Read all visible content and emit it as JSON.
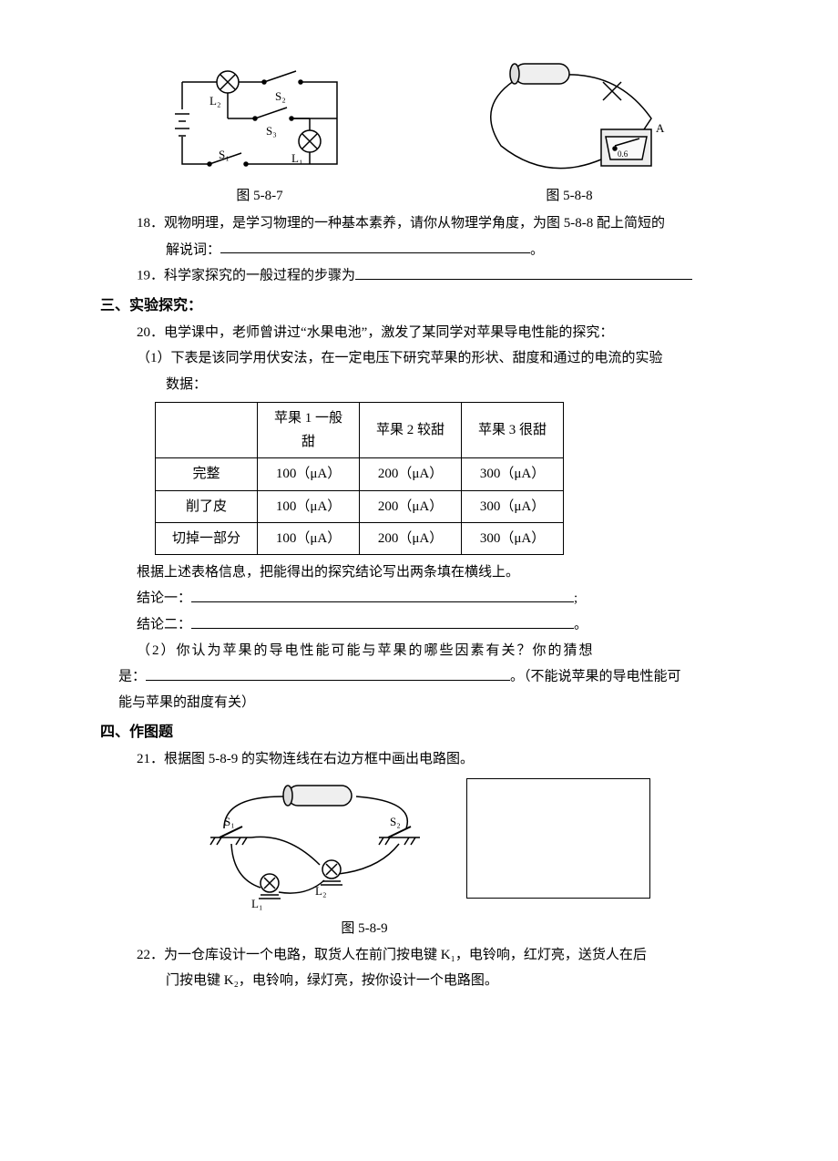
{
  "figures": {
    "fig_5_8_7_caption": "图 5-8-7",
    "fig_5_8_8_caption": "图 5-8-8",
    "fig_5_8_9_caption": "图 5-8-9",
    "circuit_5_8_7": {
      "labels": {
        "S1": "S₁",
        "S2": "S₂",
        "S3": "S₃",
        "L1": "L₁",
        "L2": "L₂"
      },
      "stroke": "#000000",
      "bg": "#ffffff"
    },
    "generator_5_8_8": {
      "label_A": "A",
      "scale_text": "0.6",
      "stroke": "#000000"
    },
    "circuit_5_8_9": {
      "labels": {
        "S1": "S₁",
        "S2": "S₂",
        "L1": "L₁",
        "L2": "L₂"
      },
      "stroke": "#000000"
    }
  },
  "q18": {
    "number": "18．",
    "text_a": "观物明理，是学习物理的一种基本素养，请你从物理学角度，为图 5-8-8 配上简短的",
    "text_b": "解说词：",
    "period": "。"
  },
  "q19": {
    "number": "19．",
    "text": "科学家探究的一般过程的步骤为"
  },
  "section3": "三、实验探究：",
  "q20": {
    "number": "20．",
    "intro": "电学课中，老师曾讲过“水果电池”，激发了某同学对苹果导电性能的探究：",
    "part1_a": "（1）下表是该同学用伏安法，在一定电压下研究苹果的形状、甜度和通过的电流的实验",
    "part1_b": "数据：",
    "table": {
      "columns": [
        "",
        "苹果 1 一般甜",
        "苹果 2 较甜",
        "苹果 3 很甜"
      ],
      "rows": [
        [
          "完整",
          "100（μA）",
          "200（μA）",
          "300（μA）"
        ],
        [
          "削了皮",
          "100（μA）",
          "200（μA）",
          "300（μA）"
        ],
        [
          "切掉一部分",
          "100（μA）",
          "200（μA）",
          "300（μA）"
        ]
      ],
      "border_color": "#000000",
      "cell_padding": 4
    },
    "after_table": "根据上述表格信息，把能得出的探究结论写出两条填在横线上。",
    "c1_label": "结论一：",
    "c1_tail": ";",
    "c2_label": "结论二：",
    "c2_tail": "。",
    "part2_a": "（2）你认为苹果的导电性能可能与苹果的哪些因素有关？你的猜想",
    "part2_b_a": "是：",
    "part2_b_tail": "。（不能说苹果的导电性能可",
    "part2_c": "能与苹果的甜度有关）"
  },
  "section4": "四、作图题",
  "q21": {
    "number": "21．",
    "text": "根据图 5-8-9 的实物连线在右边方框中画出电路图。"
  },
  "q22": {
    "number": "22．",
    "line1": "为一仓库设计一个电路，取货人在前门按电键 K₁，电铃响，红灯亮，送货人在后",
    "line2": "门按电键 K₂，电铃响，绿灯亮，按你设计一个电路图。"
  }
}
